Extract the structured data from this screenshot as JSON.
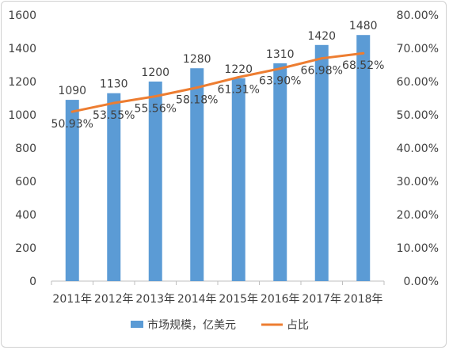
{
  "chart_data": {
    "type": "bar+line",
    "title": "",
    "categories": [
      "2011年",
      "2012年",
      "2013年",
      "2014年",
      "2015年",
      "2016年",
      "2017年",
      "2018年"
    ],
    "series": [
      {
        "name": "市场规模，亿美元",
        "type": "bar",
        "axis": "left",
        "values": [
          1090,
          1130,
          1200,
          1280,
          1220,
          1310,
          1420,
          1480
        ],
        "labels": [
          "1090",
          "1130",
          "1200",
          "1280",
          "1220",
          "1310",
          "1420",
          "1480"
        ],
        "color": "#5b9bd5"
      },
      {
        "name": "占比",
        "type": "line",
        "axis": "right",
        "values": [
          50.93,
          53.55,
          55.56,
          58.18,
          61.31,
          63.9,
          66.98,
          68.52
        ],
        "labels": [
          "50.93%",
          "53.55%",
          "55.56%",
          "58.18%",
          "61.31%",
          "63.90%",
          "66.98%",
          "68.52%"
        ],
        "color": "#ed7d31"
      }
    ],
    "y_left": {
      "ylim": [
        0,
        1600
      ],
      "ticks": [
        0,
        200,
        400,
        600,
        800,
        1000,
        1200,
        1400,
        1600
      ],
      "tick_labels": [
        "0",
        "200",
        "400",
        "600",
        "800",
        "1000",
        "1200",
        "1400",
        "1600"
      ]
    },
    "y_right": {
      "ylim": [
        0,
        80
      ],
      "ticks": [
        0,
        10,
        20,
        30,
        40,
        50,
        60,
        70,
        80
      ],
      "tick_labels": [
        "0.00%",
        "10.00%",
        "20.00%",
        "30.00%",
        "40.00%",
        "50.00%",
        "60.00%",
        "70.00%",
        "80.00%"
      ]
    },
    "grid": false,
    "legend": "bottom-center"
  }
}
